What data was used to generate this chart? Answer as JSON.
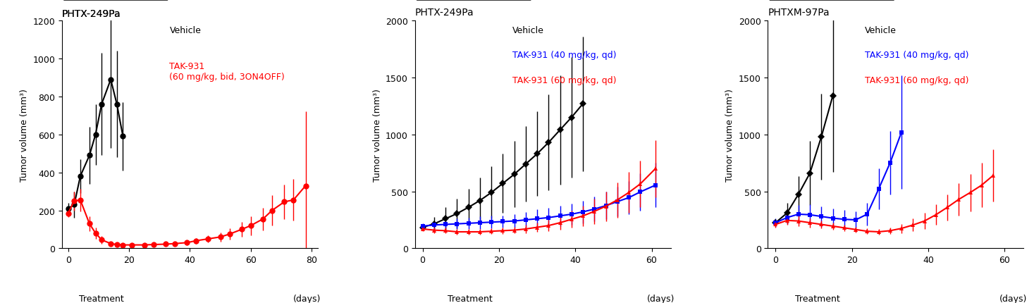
{
  "panel1": {
    "title": "PHTX-249Pa",
    "ylabel": "Tumor volume (mm³)",
    "ylim": [
      0,
      1200
    ],
    "yticks": [
      0,
      200,
      400,
      600,
      800,
      1000,
      1200
    ],
    "xlim": [
      -2,
      82
    ],
    "xticks": [
      0,
      20,
      40,
      60,
      80
    ],
    "treatment_bar": [
      0,
      22
    ],
    "legend_black": "Vehicle",
    "legend_red": "TAK-931\n(60 mg/kg, bid, 3ON4OFF)",
    "black": {
      "x": [
        0,
        2,
        4,
        7,
        9,
        11,
        14,
        16,
        18,
        21
      ],
      "y": [
        210,
        230,
        380,
        490,
        600,
        760,
        890,
        760,
        590,
        null
      ],
      "yerr": [
        30,
        70,
        90,
        150,
        160,
        270,
        360,
        280,
        180,
        null
      ]
    },
    "red": {
      "x": [
        0,
        2,
        4,
        7,
        9,
        11,
        14,
        16,
        18,
        21,
        25,
        28,
        32,
        35,
        39,
        42,
        46,
        50,
        53,
        57,
        60,
        64,
        67,
        71,
        74,
        78
      ],
      "y": [
        185,
        250,
        255,
        130,
        80,
        45,
        25,
        20,
        18,
        18,
        18,
        20,
        22,
        25,
        30,
        40,
        50,
        60,
        75,
        100,
        120,
        155,
        200,
        245,
        255,
        330
      ],
      "yerr": [
        20,
        50,
        60,
        40,
        30,
        20,
        10,
        8,
        8,
        8,
        8,
        8,
        10,
        10,
        12,
        15,
        20,
        25,
        30,
        40,
        50,
        60,
        80,
        90,
        110,
        390
      ]
    }
  },
  "panel2": {
    "title": "PHTX-249Pa",
    "ylabel": "Tumor volume (mm³)",
    "ylim": [
      0,
      2000
    ],
    "yticks": [
      0,
      500,
      1000,
      1500,
      2000
    ],
    "xlim": [
      -2,
      65
    ],
    "xticks": [
      0,
      20,
      40,
      60
    ],
    "treatment_bar": [
      0,
      25
    ],
    "legend_black": "Vehicle",
    "legend_blue": "TAK-931 (40 mg/kg, qd)",
    "legend_red": "TAK-931 (60 mg/kg, qd)",
    "black": {
      "x": [
        0,
        3,
        6,
        9,
        12,
        15,
        18,
        21,
        24,
        27,
        30,
        33,
        36,
        39,
        42,
        45,
        48,
        51,
        54,
        57,
        61
      ],
      "y": [
        185,
        215,
        260,
        305,
        360,
        420,
        490,
        570,
        650,
        740,
        830,
        930,
        1040,
        1150,
        1270,
        null,
        null,
        null,
        null,
        null,
        null
      ],
      "yerr": [
        20,
        60,
        100,
        130,
        160,
        200,
        230,
        260,
        290,
        330,
        370,
        420,
        480,
        530,
        590,
        null,
        null,
        null,
        null,
        null,
        null
      ]
    },
    "blue": {
      "x": [
        0,
        3,
        6,
        9,
        12,
        15,
        18,
        21,
        24,
        27,
        30,
        33,
        36,
        39,
        42,
        45,
        48,
        51,
        54,
        57,
        61
      ],
      "y": [
        195,
        205,
        210,
        215,
        220,
        225,
        230,
        235,
        240,
        250,
        260,
        270,
        285,
        300,
        320,
        345,
        375,
        410,
        445,
        495,
        555
      ],
      "yerr": [
        25,
        35,
        40,
        45,
        50,
        55,
        55,
        55,
        60,
        70,
        80,
        85,
        90,
        95,
        100,
        110,
        120,
        130,
        145,
        165,
        195
      ]
    },
    "red": {
      "x": [
        0,
        3,
        6,
        9,
        12,
        15,
        18,
        21,
        24,
        27,
        30,
        33,
        36,
        39,
        42,
        45,
        48,
        51,
        54,
        57,
        61
      ],
      "y": [
        170,
        160,
        155,
        145,
        145,
        145,
        150,
        155,
        160,
        170,
        185,
        200,
        225,
        255,
        285,
        325,
        370,
        425,
        490,
        565,
        700
      ],
      "yerr": [
        20,
        25,
        25,
        25,
        25,
        25,
        25,
        30,
        30,
        35,
        40,
        50,
        60,
        75,
        90,
        110,
        130,
        155,
        180,
        205,
        250
      ]
    }
  },
  "panel3": {
    "title": "PHTXM-97Pa",
    "ylabel": "Tumor volume (mm³)",
    "ylim": [
      0,
      2000
    ],
    "yticks": [
      0,
      500,
      1000,
      1500,
      2000
    ],
    "xlim": [
      -2,
      65
    ],
    "xticks": [
      0,
      20,
      40,
      60
    ],
    "treatment_bar": [
      0,
      22
    ],
    "legend_black": "Vehicle",
    "legend_blue": "TAK-931 (40 mg/kg, qd)",
    "legend_red": "TAK-931 (60 mg/kg, qd)",
    "black": {
      "x": [
        0,
        3,
        6,
        9,
        12,
        15,
        18,
        21,
        24
      ],
      "y": [
        225,
        310,
        475,
        660,
        980,
        1340,
        null,
        null,
        null
      ],
      "yerr": [
        30,
        90,
        160,
        280,
        380,
        670,
        null,
        null,
        null
      ]
    },
    "blue": {
      "x": [
        0,
        3,
        6,
        9,
        12,
        15,
        18,
        21,
        24,
        27,
        30,
        33,
        36,
        39,
        42,
        45,
        48,
        51,
        54,
        57,
        61
      ],
      "y": [
        225,
        270,
        300,
        295,
        280,
        265,
        255,
        250,
        300,
        520,
        750,
        1020,
        null,
        null,
        null,
        null,
        null,
        null,
        null,
        null,
        null
      ],
      "yerr": [
        35,
        60,
        80,
        90,
        90,
        85,
        80,
        75,
        100,
        180,
        280,
        500,
        null,
        null,
        null,
        null,
        null,
        null,
        null,
        null,
        null
      ]
    },
    "red": {
      "x": [
        0,
        3,
        6,
        9,
        12,
        15,
        18,
        21,
        24,
        27,
        30,
        33,
        36,
        39,
        42,
        45,
        48,
        51,
        54,
        57,
        61
      ],
      "y": [
        210,
        245,
        240,
        225,
        210,
        195,
        180,
        165,
        150,
        145,
        155,
        175,
        205,
        240,
        295,
        360,
        430,
        490,
        555,
        640,
        null
      ],
      "yerr": [
        25,
        40,
        45,
        40,
        35,
        30,
        28,
        26,
        25,
        25,
        30,
        40,
        55,
        70,
        90,
        115,
        140,
        165,
        195,
        230,
        null
      ]
    }
  },
  "colors": {
    "black": "#000000",
    "red": "#FF0000",
    "blue": "#0000FF"
  }
}
